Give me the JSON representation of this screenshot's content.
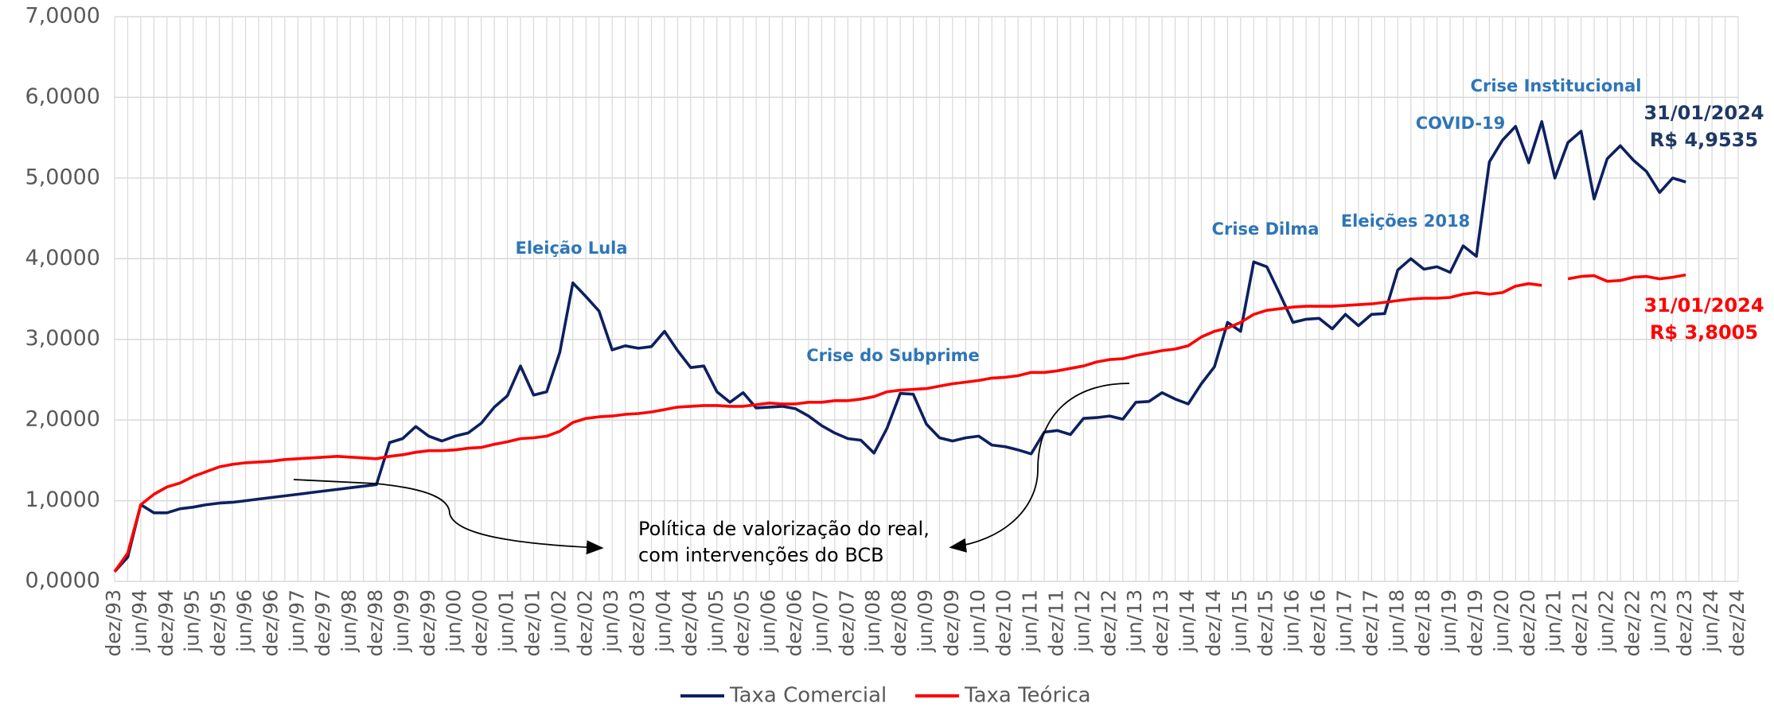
{
  "chart_data": {
    "type": "line",
    "categories": [
      "dez/93",
      null,
      "jun/94",
      null,
      "dez/94",
      null,
      "jun/95",
      null,
      "dez/95",
      null,
      "jun/96",
      null,
      "dez/96",
      null,
      "jun/97",
      null,
      "dez/97",
      null,
      "jun/98",
      null,
      "dez/98",
      null,
      "jun/99",
      null,
      "dez/99",
      null,
      "jun/00",
      null,
      "dez/00",
      null,
      "jun/01",
      null,
      "dez/01",
      null,
      "jun/02",
      null,
      "dez/02",
      null,
      "jun/03",
      null,
      "dez/03",
      null,
      "jun/04",
      null,
      "dez/04",
      null,
      "jun/05",
      null,
      "dez/05",
      null,
      "jun/06",
      null,
      "dez/06",
      null,
      "jun/07",
      null,
      "dez/07",
      null,
      "jun/08",
      null,
      "dez/08",
      null,
      "jun/09",
      null,
      "dez/09",
      null,
      "jun/10",
      null,
      "dez/10",
      null,
      "jun/11",
      null,
      "dez/11",
      null,
      "jun/12",
      null,
      "dez/12",
      null,
      "jun/13",
      null,
      "dez/13",
      null,
      "jun/14",
      null,
      "dez/14",
      null,
      "jun/15",
      null,
      "dez/15",
      null,
      "jun/16",
      null,
      "dez/16",
      null,
      "jun/17",
      null,
      "dez/17",
      null,
      "jun/18",
      null,
      "dez/18",
      null,
      "jun/19",
      null,
      "dez/19",
      null,
      "jun/20",
      null,
      "dez/20",
      null,
      "jun/21",
      null,
      "dez/21",
      null,
      "jun/22",
      null,
      "dez/22",
      null,
      "jun/23",
      null,
      "dez/23",
      null,
      "jun/24",
      null,
      "dez/24"
    ],
    "series": [
      {
        "name": "Taxa Comercial",
        "color": "#0d2060",
        "values": [
          0.12,
          0.3,
          0.95,
          0.85,
          0.85,
          0.9,
          0.92,
          0.95,
          0.97,
          0.98,
          1.0,
          1.02,
          1.04,
          1.06,
          1.08,
          1.1,
          1.12,
          1.14,
          1.16,
          1.18,
          1.2,
          1.72,
          1.77,
          1.92,
          1.8,
          1.74,
          1.8,
          1.84,
          1.96,
          2.16,
          2.3,
          2.67,
          2.31,
          2.35,
          2.84,
          3.7,
          3.53,
          3.35,
          2.87,
          2.92,
          2.89,
          2.91,
          3.1,
          2.86,
          2.65,
          2.67,
          2.35,
          2.22,
          2.34,
          2.15,
          2.16,
          2.17,
          2.14,
          2.05,
          1.93,
          1.84,
          1.77,
          1.75,
          1.59,
          1.9,
          2.33,
          2.32,
          1.95,
          1.78,
          1.74,
          1.78,
          1.8,
          1.69,
          1.67,
          1.63,
          1.58,
          1.85,
          1.87,
          1.82,
          2.02,
          2.03,
          2.05,
          2.01,
          2.22,
          2.23,
          2.34,
          2.26,
          2.2,
          2.45,
          2.66,
          3.21,
          3.1,
          3.96,
          3.9,
          3.56,
          3.21,
          3.25,
          3.26,
          3.13,
          3.31,
          3.17,
          3.31,
          3.32,
          3.86,
          4.0,
          3.87,
          3.9,
          3.83,
          4.16,
          4.03,
          5.2,
          5.47,
          5.64,
          5.19,
          5.7,
          5.0,
          5.44,
          5.58,
          4.74,
          5.24,
          5.4,
          5.22,
          5.08,
          4.82,
          5.0,
          4.95,
          null,
          null,
          null,
          null
        ]
      },
      {
        "name": "Taxa Teórica",
        "color": "#ff0000",
        "values": [
          0.12,
          0.35,
          0.95,
          1.08,
          1.17,
          1.22,
          1.3,
          1.36,
          1.42,
          1.45,
          1.47,
          1.48,
          1.49,
          1.51,
          1.52,
          1.53,
          1.54,
          1.55,
          1.54,
          1.53,
          1.52,
          1.55,
          1.57,
          1.6,
          1.62,
          1.62,
          1.63,
          1.65,
          1.66,
          1.7,
          1.73,
          1.77,
          1.78,
          1.8,
          1.86,
          1.97,
          2.02,
          2.04,
          2.05,
          2.07,
          2.08,
          2.1,
          2.13,
          2.16,
          2.17,
          2.18,
          2.18,
          2.17,
          2.17,
          2.19,
          2.21,
          2.2,
          2.2,
          2.22,
          2.22,
          2.24,
          2.24,
          2.26,
          2.29,
          2.35,
          2.37,
          2.38,
          2.39,
          2.42,
          2.45,
          2.47,
          2.49,
          2.52,
          2.53,
          2.55,
          2.59,
          2.59,
          2.61,
          2.64,
          2.67,
          2.72,
          2.75,
          2.76,
          2.8,
          2.83,
          2.86,
          2.88,
          2.92,
          3.03,
          3.1,
          3.14,
          3.21,
          3.31,
          3.36,
          3.38,
          3.4,
          3.41,
          3.41,
          3.41,
          3.42,
          3.43,
          3.44,
          3.46,
          3.48,
          3.5,
          3.51,
          3.51,
          3.52,
          3.56,
          3.58,
          3.56,
          3.58,
          3.66,
          3.69,
          3.67,
          null,
          3.75,
          3.78,
          3.79,
          3.72,
          3.73,
          3.77,
          3.78,
          3.75,
          3.77,
          3.8,
          null,
          null,
          null,
          null
        ]
      }
    ],
    "ylim": [
      0,
      7
    ],
    "yticks": [
      {
        "value": 0,
        "label": "0,0000"
      },
      {
        "value": 1,
        "label": "1,0000"
      },
      {
        "value": 2,
        "label": "2,0000"
      },
      {
        "value": 3,
        "label": "3,0000"
      },
      {
        "value": 4,
        "label": "4,0000"
      },
      {
        "value": 5,
        "label": "5,0000"
      },
      {
        "value": 6,
        "label": "6,0000"
      },
      {
        "value": 7,
        "label": "7,0000"
      }
    ],
    "grid": true,
    "legend": "bottom",
    "annotations": [
      "Eleição Lula",
      "Crise do Subprime",
      "Crise Dilma",
      "Eleições 2018",
      "COVID-19",
      "Crise Institucional"
    ],
    "end_labels": {
      "comercial": [
        "31/01/2024",
        "R$ 4,9535"
      ],
      "teorica": [
        "31/01/2024",
        "R$ 3,8005"
      ]
    },
    "note": [
      "Política de valorização do real,",
      "com intervenções do BCB"
    ]
  }
}
